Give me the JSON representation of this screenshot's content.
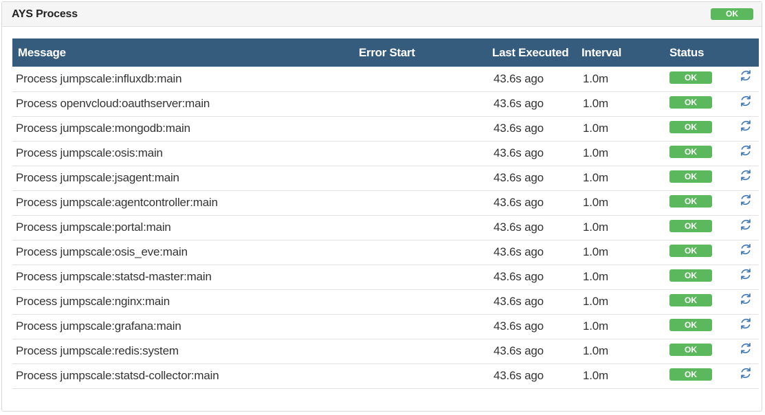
{
  "panel": {
    "title": "AYS Process",
    "status": "OK"
  },
  "colors": {
    "header_bg": "#365c7d",
    "ok_green": "#5cb85c",
    "refresh_blue": "#3d78b5"
  },
  "table": {
    "headers": {
      "message": "Message",
      "error_start": "Error Start",
      "last_executed": "Last Executed",
      "interval": "Interval",
      "status": "Status"
    },
    "rows": [
      {
        "message": "Process jumpscale:influxdb:main",
        "error_start": "",
        "last_executed": "43.6s ago",
        "interval": "1.0m",
        "status": "OK",
        "action_icon": "refresh-icon"
      },
      {
        "message": "Process openvcloud:oauthserver:main",
        "error_start": "",
        "last_executed": "43.6s ago",
        "interval": "1.0m",
        "status": "OK",
        "action_icon": "refresh-icon"
      },
      {
        "message": "Process jumpscale:mongodb:main",
        "error_start": "",
        "last_executed": "43.6s ago",
        "interval": "1.0m",
        "status": "OK",
        "action_icon": "refresh-icon"
      },
      {
        "message": "Process jumpscale:osis:main",
        "error_start": "",
        "last_executed": "43.6s ago",
        "interval": "1.0m",
        "status": "OK",
        "action_icon": "refresh-icon"
      },
      {
        "message": "Process jumpscale:jsagent:main",
        "error_start": "",
        "last_executed": "43.6s ago",
        "interval": "1.0m",
        "status": "OK",
        "action_icon": "refresh-icon"
      },
      {
        "message": "Process jumpscale:agentcontroller:main",
        "error_start": "",
        "last_executed": "43.6s ago",
        "interval": "1.0m",
        "status": "OK",
        "action_icon": "refresh-icon"
      },
      {
        "message": "Process jumpscale:portal:main",
        "error_start": "",
        "last_executed": "43.6s ago",
        "interval": "1.0m",
        "status": "OK",
        "action_icon": "refresh-icon"
      },
      {
        "message": "Process jumpscale:osis_eve:main",
        "error_start": "",
        "last_executed": "43.6s ago",
        "interval": "1.0m",
        "status": "OK",
        "action_icon": "refresh-icon"
      },
      {
        "message": "Process jumpscale:statsd-master:main",
        "error_start": "",
        "last_executed": "43.6s ago",
        "interval": "1.0m",
        "status": "OK",
        "action_icon": "refresh-icon"
      },
      {
        "message": "Process jumpscale:nginx:main",
        "error_start": "",
        "last_executed": "43.6s ago",
        "interval": "1.0m",
        "status": "OK",
        "action_icon": "refresh-icon"
      },
      {
        "message": "Process jumpscale:grafana:main",
        "error_start": "",
        "last_executed": "43.6s ago",
        "interval": "1.0m",
        "status": "OK",
        "action_icon": "refresh-icon"
      },
      {
        "message": "Process jumpscale:redis:system",
        "error_start": "",
        "last_executed": "43.6s ago",
        "interval": "1.0m",
        "status": "OK",
        "action_icon": "refresh-icon"
      },
      {
        "message": "Process jumpscale:statsd-collector:main",
        "error_start": "",
        "last_executed": "43.6s ago",
        "interval": "1.0m",
        "status": "OK",
        "action_icon": "refresh-icon"
      }
    ]
  }
}
